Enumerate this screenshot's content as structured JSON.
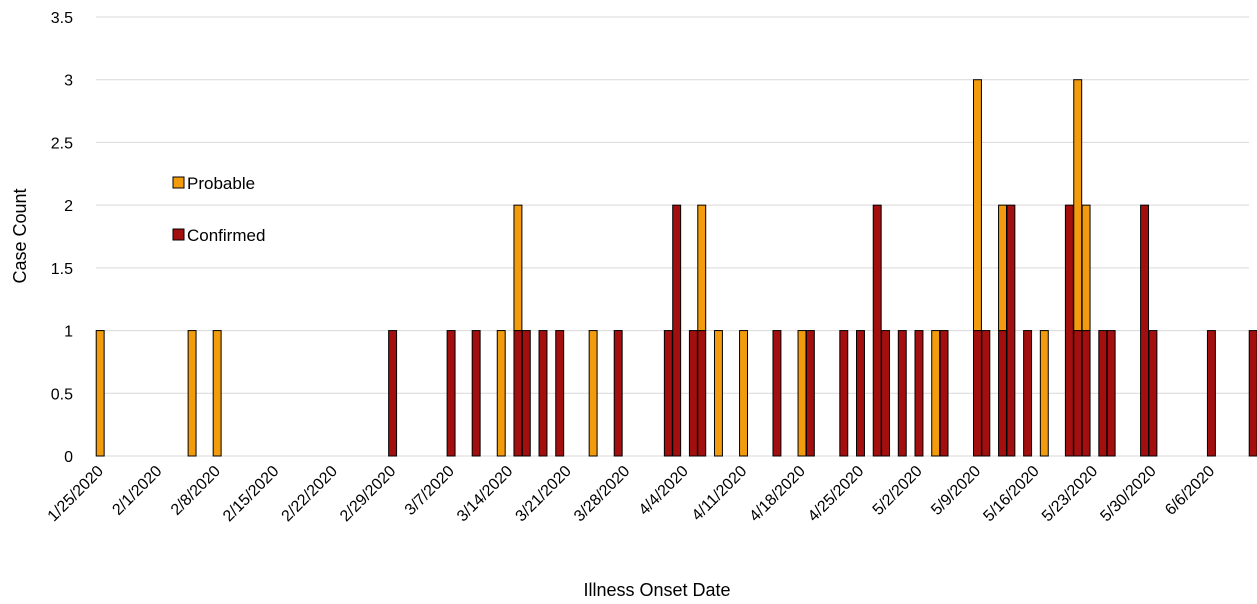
{
  "chart_data": {
    "type": "bar",
    "stacked": true,
    "xlabel": "Illness Onset Date",
    "ylabel": "Case Count",
    "ylim": [
      0,
      3.5
    ],
    "yticks": [
      "0",
      "0.5",
      "1",
      "1.5",
      "2",
      "2.5",
      "3",
      "3.5"
    ],
    "x_start_date": "1/25/2020",
    "x_end_date": "6/10/2020",
    "x_tick_labels": [
      "1/25/2020",
      "2/1/2020",
      "2/8/2020",
      "2/15/2020",
      "2/22/2020",
      "2/29/2020",
      "3/7/2020",
      "3/14/2020",
      "3/21/2020",
      "3/28/2020",
      "4/4/2020",
      "4/11/2020",
      "4/18/2020",
      "4/25/2020",
      "5/2/2020",
      "5/9/2020",
      "5/16/2020",
      "5/23/2020",
      "5/30/2020",
      "6/6/2020"
    ],
    "grid": true,
    "legend_position": "left",
    "colors": {
      "Probable": "#f29b0d",
      "Confirmed": "#a30f0f"
    },
    "series": [
      {
        "name": "Confirmed",
        "points": [
          {
            "date": "2/29/2020",
            "value": 1
          },
          {
            "date": "3/7/2020",
            "value": 1
          },
          {
            "date": "3/10/2020",
            "value": 1
          },
          {
            "date": "3/15/2020",
            "value": 1
          },
          {
            "date": "3/16/2020",
            "value": 1
          },
          {
            "date": "3/18/2020",
            "value": 1
          },
          {
            "date": "3/20/2020",
            "value": 1
          },
          {
            "date": "3/27/2020",
            "value": 1
          },
          {
            "date": "4/2/2020",
            "value": 1
          },
          {
            "date": "4/3/2020",
            "value": 2
          },
          {
            "date": "4/5/2020",
            "value": 1
          },
          {
            "date": "4/6/2020",
            "value": 1
          },
          {
            "date": "4/15/2020",
            "value": 1
          },
          {
            "date": "4/19/2020",
            "value": 1
          },
          {
            "date": "4/23/2020",
            "value": 1
          },
          {
            "date": "4/25/2020",
            "value": 1
          },
          {
            "date": "4/27/2020",
            "value": 2
          },
          {
            "date": "4/28/2020",
            "value": 1
          },
          {
            "date": "4/30/2020",
            "value": 1
          },
          {
            "date": "5/2/2020",
            "value": 1
          },
          {
            "date": "5/5/2020",
            "value": 1
          },
          {
            "date": "5/9/2020",
            "value": 1
          },
          {
            "date": "5/10/2020",
            "value": 1
          },
          {
            "date": "5/12/2020",
            "value": 1
          },
          {
            "date": "5/13/2020",
            "value": 2
          },
          {
            "date": "5/15/2020",
            "value": 1
          },
          {
            "date": "5/20/2020",
            "value": 2
          },
          {
            "date": "5/21/2020",
            "value": 1
          },
          {
            "date": "5/22/2020",
            "value": 1
          },
          {
            "date": "5/24/2020",
            "value": 1
          },
          {
            "date": "5/25/2020",
            "value": 1
          },
          {
            "date": "5/29/2020",
            "value": 2
          },
          {
            "date": "5/30/2020",
            "value": 1
          },
          {
            "date": "6/6/2020",
            "value": 1
          },
          {
            "date": "6/11/2020",
            "value": 1
          }
        ]
      },
      {
        "name": "Probable",
        "points": [
          {
            "date": "1/25/2020",
            "value": 1
          },
          {
            "date": "2/5/2020",
            "value": 1
          },
          {
            "date": "2/8/2020",
            "value": 1
          },
          {
            "date": "3/13/2020",
            "value": 1
          },
          {
            "date": "3/15/2020",
            "value": 1
          },
          {
            "date": "3/24/2020",
            "value": 1
          },
          {
            "date": "4/6/2020",
            "value": 1
          },
          {
            "date": "4/8/2020",
            "value": 1
          },
          {
            "date": "4/11/2020",
            "value": 1
          },
          {
            "date": "4/18/2020",
            "value": 1
          },
          {
            "date": "5/4/2020",
            "value": 1
          },
          {
            "date": "5/9/2020",
            "value": 2
          },
          {
            "date": "5/12/2020",
            "value": 1
          },
          {
            "date": "5/17/2020",
            "value": 1
          },
          {
            "date": "5/21/2020",
            "value": 2
          },
          {
            "date": "5/22/2020",
            "value": 1
          }
        ]
      }
    ]
  }
}
